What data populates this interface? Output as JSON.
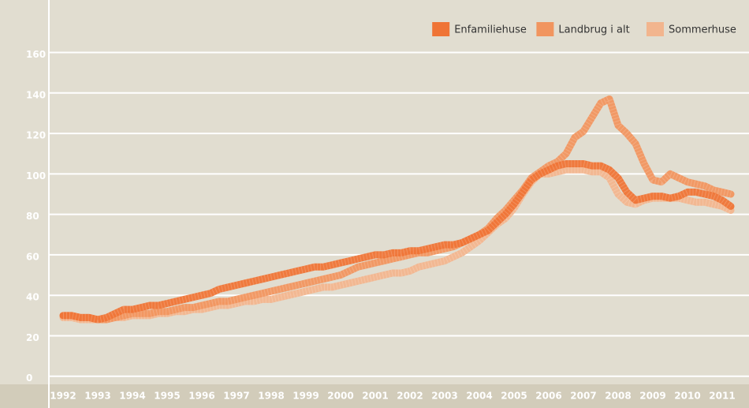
{
  "chart_data": {
    "type": "line",
    "categories": [
      "1992",
      null,
      null,
      null,
      "1993",
      null,
      null,
      null,
      "1994",
      null,
      null,
      null,
      "1995",
      null,
      null,
      null,
      "1996",
      null,
      null,
      null,
      "1997",
      null,
      null,
      null,
      "1998",
      null,
      null,
      null,
      "1999",
      null,
      null,
      null,
      "2000",
      null,
      null,
      null,
      "2001",
      null,
      null,
      null,
      "2002",
      null,
      null,
      null,
      "2003",
      null,
      null,
      null,
      "2004",
      null,
      null,
      null,
      "2005",
      null,
      null,
      null,
      "2006",
      null,
      null,
      null,
      "2007",
      null,
      null,
      null,
      "2008",
      null,
      null,
      null,
      "2009",
      null,
      null,
      null,
      "2010",
      null,
      null,
      null,
      "2011",
      null
    ],
    "series": [
      {
        "name": "Enfamiliehuse",
        "color": "#ef7436",
        "values": [
          30,
          30,
          29,
          29,
          28,
          29,
          31,
          33,
          33,
          34,
          35,
          35,
          36,
          37,
          38,
          39,
          40,
          41,
          43,
          44,
          45,
          46,
          47,
          48,
          49,
          50,
          51,
          52,
          53,
          54,
          54,
          55,
          56,
          57,
          58,
          59,
          60,
          60,
          61,
          61,
          62,
          62,
          63,
          64,
          65,
          65,
          66,
          68,
          70,
          72,
          76,
          80,
          85,
          91,
          97,
          100,
          102,
          104,
          105,
          105,
          105,
          104,
          104,
          102,
          98,
          91,
          87,
          88,
          89,
          89,
          88,
          89,
          91,
          91,
          90,
          89,
          87,
          84
        ]
      },
      {
        "name": "Landbrug i alt",
        "color": "#f1955f",
        "values": [
          30,
          30,
          29,
          29,
          28,
          28,
          29,
          30,
          31,
          31,
          31,
          32,
          32,
          33,
          34,
          34,
          35,
          36,
          37,
          37,
          38,
          39,
          40,
          41,
          42,
          43,
          44,
          45,
          46,
          47,
          48,
          49,
          50,
          52,
          54,
          55,
          56,
          57,
          58,
          59,
          60,
          61,
          61,
          62,
          63,
          64,
          66,
          68,
          70,
          73,
          78,
          82,
          87,
          92,
          98,
          101,
          104,
          106,
          110,
          118,
          121,
          128,
          135,
          137,
          124,
          120,
          115,
          105,
          97,
          96,
          100,
          98,
          96,
          95,
          94,
          92,
          91,
          90
        ]
      },
      {
        "name": "Sommerhuse",
        "color": "#f2b58e",
        "values": [
          29,
          29,
          28,
          28,
          28,
          28,
          29,
          29,
          30,
          30,
          30,
          31,
          31,
          32,
          32,
          33,
          33,
          34,
          35,
          35,
          36,
          37,
          37,
          38,
          38,
          39,
          40,
          41,
          42,
          43,
          44,
          44,
          45,
          46,
          47,
          48,
          49,
          50,
          51,
          51,
          52,
          54,
          55,
          56,
          57,
          59,
          61,
          64,
          67,
          71,
          75,
          78,
          83,
          90,
          96,
          100,
          100,
          101,
          102,
          102,
          102,
          101,
          101,
          98,
          90,
          86,
          85,
          87,
          88,
          88,
          88,
          88,
          87,
          86,
          86,
          85,
          84,
          82
        ]
      }
    ],
    "ylim": [
      -4,
      184
    ],
    "yticks": [
      0,
      20,
      40,
      60,
      80,
      100,
      120,
      140,
      160
    ],
    "grid": true,
    "legend": "upper right"
  }
}
